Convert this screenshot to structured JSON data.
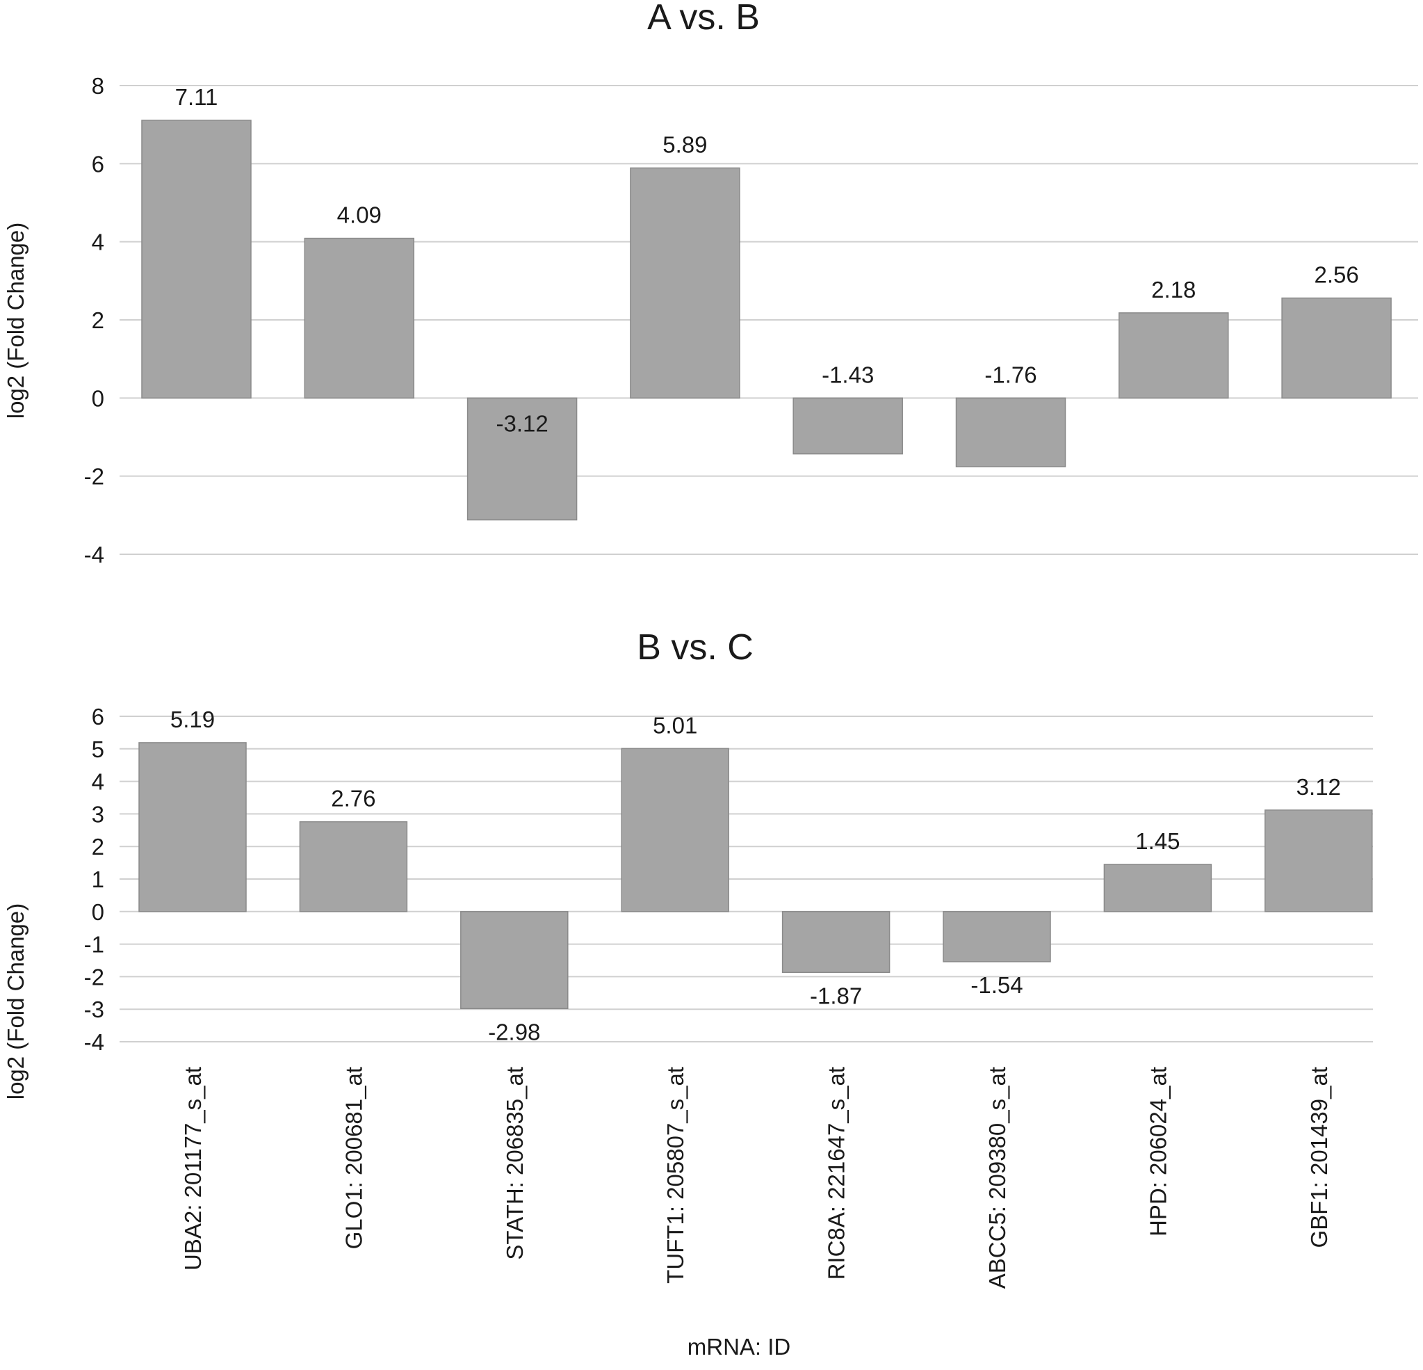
{
  "chart_data": [
    {
      "type": "bar",
      "title": "A vs. B",
      "xlabel": "",
      "ylabel": "log2 (Fold Change)",
      "ylim": [
        -4,
        8
      ],
      "yticks": [
        8,
        6,
        4,
        2,
        0,
        -2,
        -4
      ],
      "grid": true,
      "categories": [
        "UBA2: 201177_s_at",
        "GLO1: 200681_at",
        "STATH: 206835_at",
        "TUFT1: 205807_s_at",
        "RIC8A: 221647_s_at",
        "ABCC5: 209380_s_at",
        "HPD: 206024_at",
        "GBF1: 201439_at"
      ],
      "values": [
        7.11,
        4.09,
        -3.12,
        5.89,
        -1.43,
        -1.76,
        2.18,
        2.56
      ],
      "value_labels": [
        "7.11",
        "4.09",
        "-3.12",
        "5.89",
        "-1.43",
        "-1.76",
        "2.18",
        "2.56"
      ],
      "colors": {
        "bar": "#a5a5a5",
        "grid": "#d0d0d0"
      }
    },
    {
      "type": "bar",
      "title": "B vs. C",
      "xlabel": "mRNA: ID",
      "ylabel": "log2 (Fold Change)",
      "ylim": [
        -4,
        6
      ],
      "yticks": [
        6,
        5,
        4,
        3,
        2,
        1,
        0,
        -1,
        -2,
        -3,
        -4
      ],
      "grid": true,
      "categories": [
        "UBA2: 201177_s_at",
        "GLO1: 200681_at",
        "STATH: 206835_at",
        "TUFT1: 205807_s_at",
        "RIC8A: 221647_s_at",
        "ABCC5: 209380_s_at",
        "HPD: 206024_at",
        "GBF1: 201439_at"
      ],
      "values": [
        5.19,
        2.76,
        -2.98,
        5.01,
        -1.87,
        -1.54,
        1.45,
        3.12
      ],
      "value_labels": [
        "5.19",
        "2.76",
        "-2.98",
        "5.01",
        "-1.87",
        "-1.54",
        "1.45",
        "3.12"
      ],
      "colors": {
        "bar": "#a5a5a5",
        "grid": "#d0d0d0"
      }
    }
  ]
}
